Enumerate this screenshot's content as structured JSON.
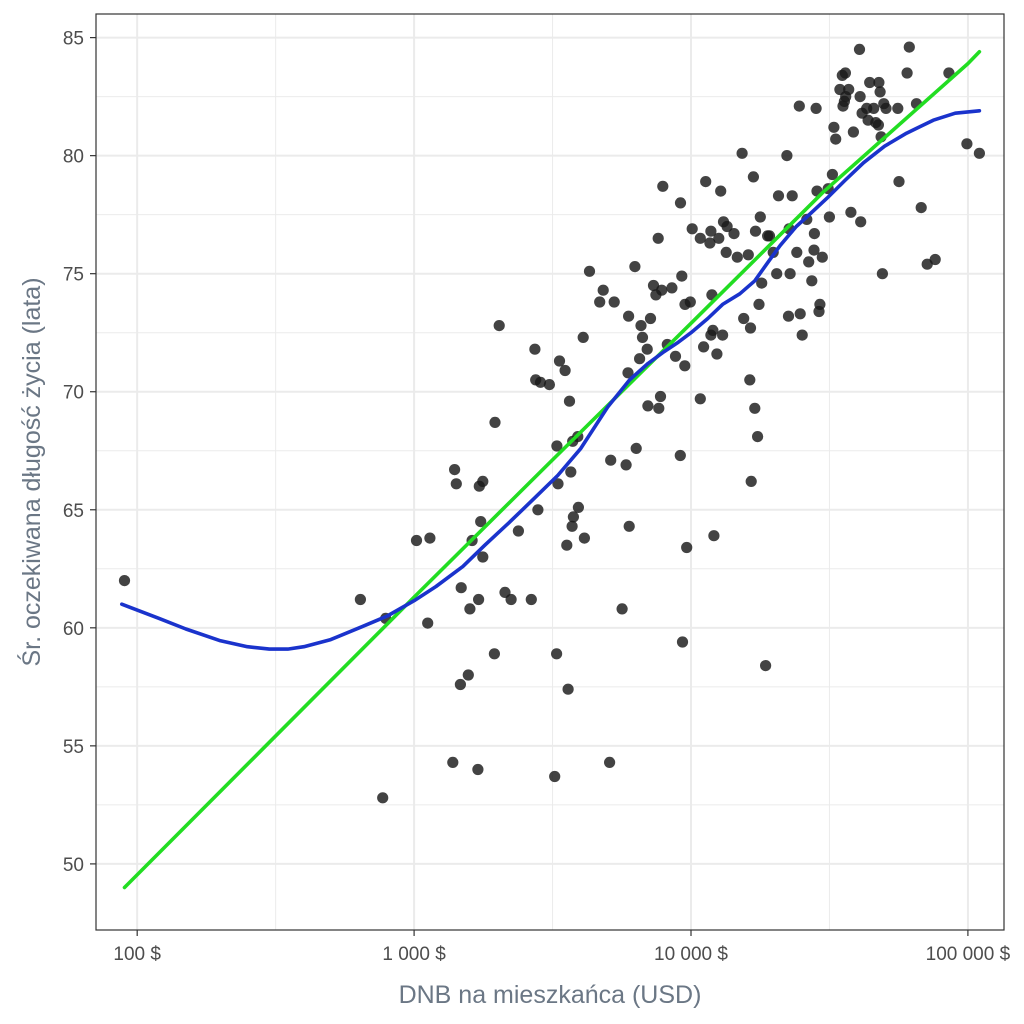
{
  "chart_data": {
    "type": "scatter",
    "xlabel": "DNB na mieszkańca (USD)",
    "ylabel": "Śr. oczekiwana długość życia (lata)",
    "x_scale": "log10",
    "xlim": [
      71,
      135000
    ],
    "ylim": [
      47.2,
      86.0
    ],
    "x_ticks": [
      {
        "value": 100,
        "label": "100 $"
      },
      {
        "value": 1000,
        "label": "1 000 $"
      },
      {
        "value": 10000,
        "label": "10 000 $"
      },
      {
        "value": 100000,
        "label": "100 000 $"
      }
    ],
    "y_ticks": [
      {
        "value": 50,
        "label": "50"
      },
      {
        "value": 55,
        "label": "55"
      },
      {
        "value": 60,
        "label": "60"
      },
      {
        "value": 65,
        "label": "65"
      },
      {
        "value": 70,
        "label": "70"
      },
      {
        "value": 75,
        "label": "75"
      },
      {
        "value": 80,
        "label": "80"
      },
      {
        "value": 85,
        "label": "85"
      }
    ],
    "grid": true,
    "legend": "none",
    "colors": {
      "points": "#1a1a1a",
      "linear_fit": "#22dd22",
      "smooth_fit": "#1a33cc",
      "grid": "#ebebeb",
      "panel_border": "#333333"
    },
    "points": [
      [
        90,
        62.0
      ],
      [
        640,
        61.2
      ],
      [
        770,
        52.8
      ],
      [
        790,
        60.4
      ],
      [
        1020,
        63.7
      ],
      [
        1120,
        60.2
      ],
      [
        1140,
        63.8
      ],
      [
        1380,
        54.3
      ],
      [
        1400,
        66.7
      ],
      [
        1420,
        66.1
      ],
      [
        1470,
        57.6
      ],
      [
        1480,
        61.7
      ],
      [
        1570,
        58.0
      ],
      [
        1590,
        60.8
      ],
      [
        1620,
        63.7
      ],
      [
        1700,
        54.0
      ],
      [
        1710,
        61.2
      ],
      [
        1720,
        66.0
      ],
      [
        1740,
        64.5
      ],
      [
        1770,
        66.2
      ],
      [
        1770,
        63.0
      ],
      [
        1950,
        58.9
      ],
      [
        1960,
        68.7
      ],
      [
        2030,
        72.8
      ],
      [
        2130,
        61.5
      ],
      [
        2240,
        61.2
      ],
      [
        2380,
        64.1
      ],
      [
        2650,
        61.2
      ],
      [
        2730,
        71.8
      ],
      [
        2750,
        70.5
      ],
      [
        2800,
        65.0
      ],
      [
        2860,
        70.4
      ],
      [
        3080,
        70.3
      ],
      [
        3220,
        53.7
      ],
      [
        3270,
        58.9
      ],
      [
        3280,
        67.7
      ],
      [
        3310,
        66.1
      ],
      [
        3350,
        71.3
      ],
      [
        3510,
        70.9
      ],
      [
        3560,
        63.5
      ],
      [
        3600,
        57.4
      ],
      [
        3640,
        69.6
      ],
      [
        3680,
        66.6
      ],
      [
        3720,
        64.3
      ],
      [
        3740,
        67.9
      ],
      [
        3760,
        64.7
      ],
      [
        3900,
        68.1
      ],
      [
        3920,
        65.1
      ],
      [
        4080,
        72.3
      ],
      [
        4120,
        63.8
      ],
      [
        4300,
        75.1
      ],
      [
        4680,
        73.8
      ],
      [
        4820,
        74.3
      ],
      [
        5080,
        54.3
      ],
      [
        5130,
        67.1
      ],
      [
        5280,
        73.8
      ],
      [
        5640,
        60.8
      ],
      [
        5830,
        66.9
      ],
      [
        5920,
        70.8
      ],
      [
        5950,
        73.2
      ],
      [
        5980,
        64.3
      ],
      [
        6270,
        75.3
      ],
      [
        6340,
        67.6
      ],
      [
        6520,
        71.4
      ],
      [
        6600,
        72.8
      ],
      [
        6680,
        72.3
      ],
      [
        6950,
        71.8
      ],
      [
        6990,
        69.4
      ],
      [
        7140,
        73.1
      ],
      [
        7320,
        74.5
      ],
      [
        7470,
        74.1
      ],
      [
        7610,
        76.5
      ],
      [
        7650,
        69.3
      ],
      [
        7760,
        69.8
      ],
      [
        7840,
        74.3
      ],
      [
        7910,
        78.7
      ],
      [
        8210,
        72.0
      ],
      [
        8530,
        74.4
      ],
      [
        8790,
        71.5
      ],
      [
        9150,
        67.3
      ],
      [
        9160,
        78.0
      ],
      [
        9260,
        74.9
      ],
      [
        9320,
        59.4
      ],
      [
        9500,
        71.1
      ],
      [
        9510,
        73.7
      ],
      [
        9650,
        63.4
      ],
      [
        9940,
        73.8
      ],
      [
        10100,
        76.9
      ],
      [
        10800,
        69.7
      ],
      [
        10800,
        76.5
      ],
      [
        11100,
        71.9
      ],
      [
        11300,
        78.9
      ],
      [
        11700,
        76.3
      ],
      [
        11800,
        72.4
      ],
      [
        11800,
        76.8
      ],
      [
        11900,
        74.1
      ],
      [
        12000,
        72.6
      ],
      [
        12100,
        63.9
      ],
      [
        12400,
        71.6
      ],
      [
        12600,
        76.5
      ],
      [
        12800,
        78.5
      ],
      [
        13000,
        72.4
      ],
      [
        13100,
        77.2
      ],
      [
        13400,
        75.9
      ],
      [
        13500,
        77.0
      ],
      [
        14300,
        76.7
      ],
      [
        14700,
        75.7
      ],
      [
        15300,
        80.1
      ],
      [
        15500,
        73.1
      ],
      [
        16100,
        75.8
      ],
      [
        16300,
        70.5
      ],
      [
        16400,
        72.7
      ],
      [
        16500,
        66.2
      ],
      [
        16800,
        79.1
      ],
      [
        17000,
        69.3
      ],
      [
        17100,
        76.8
      ],
      [
        17400,
        68.1
      ],
      [
        17600,
        73.7
      ],
      [
        17800,
        77.4
      ],
      [
        18000,
        74.6
      ],
      [
        18600,
        58.4
      ],
      [
        18900,
        76.6
      ],
      [
        19200,
        76.6
      ],
      [
        19800,
        75.9
      ],
      [
        20400,
        75.0
      ],
      [
        20700,
        78.3
      ],
      [
        22200,
        80.0
      ],
      [
        22500,
        73.2
      ],
      [
        22600,
        76.9
      ],
      [
        22800,
        75.0
      ],
      [
        23200,
        78.3
      ],
      [
        24100,
        75.9
      ],
      [
        24600,
        82.1
      ],
      [
        24800,
        73.3
      ],
      [
        25200,
        72.4
      ],
      [
        26200,
        77.3
      ],
      [
        26600,
        75.5
      ],
      [
        27300,
        74.7
      ],
      [
        27800,
        76.0
      ],
      [
        27900,
        76.7
      ],
      [
        28300,
        82.0
      ],
      [
        28500,
        78.5
      ],
      [
        29000,
        73.4
      ],
      [
        29200,
        73.7
      ],
      [
        29800,
        75.7
      ],
      [
        31300,
        78.6
      ],
      [
        31600,
        77.4
      ],
      [
        32400,
        79.2
      ],
      [
        32800,
        81.2
      ],
      [
        33300,
        80.7
      ],
      [
        34500,
        82.8
      ],
      [
        35200,
        83.4
      ],
      [
        35400,
        82.1
      ],
      [
        35800,
        82.3
      ],
      [
        36100,
        83.5
      ],
      [
        36200,
        82.5
      ],
      [
        37100,
        82.8
      ],
      [
        37800,
        77.6
      ],
      [
        38600,
        81.0
      ],
      [
        40600,
        84.5
      ],
      [
        40800,
        82.5
      ],
      [
        41000,
        77.2
      ],
      [
        41500,
        81.8
      ],
      [
        43100,
        82.0
      ],
      [
        43600,
        81.5
      ],
      [
        44200,
        83.1
      ],
      [
        45700,
        82.0
      ],
      [
        46500,
        81.4
      ],
      [
        47500,
        81.3
      ],
      [
        47700,
        83.1
      ],
      [
        48200,
        82.7
      ],
      [
        48600,
        80.8
      ],
      [
        49100,
        75.0
      ],
      [
        49700,
        82.2
      ],
      [
        50600,
        82.0
      ],
      [
        55800,
        82.0
      ],
      [
        56400,
        78.9
      ],
      [
        60300,
        83.5
      ],
      [
        61400,
        84.6
      ],
      [
        65200,
        82.2
      ],
      [
        67800,
        77.8
      ],
      [
        71300,
        75.4
      ],
      [
        76200,
        75.6
      ],
      [
        85400,
        83.5
      ],
      [
        99200,
        80.5
      ],
      [
        110000,
        80.1
      ]
    ],
    "series": [
      {
        "kind": "linear_fit",
        "x": [
          90,
          300,
          1000,
          3000,
          10000,
          30000,
          100000,
          110000
        ],
        "y": [
          49.0,
          55.15,
          61.3,
          66.85,
          72.9,
          78.45,
          83.9,
          84.4
        ]
      },
      {
        "kind": "smooth_fit",
        "x": [
          88,
          120,
          150,
          200,
          250,
          300,
          350,
          400,
          500,
          650,
          800,
          1000,
          1200,
          1500,
          1800,
          2200,
          2700,
          3300,
          4000,
          5000,
          6000,
          7000,
          8000,
          9000,
          10000,
          11500,
          13000,
          15000,
          17000,
          19000,
          21000,
          24000,
          27000,
          31000,
          36000,
          42000,
          50000,
          60000,
          75000,
          90000,
          110000
        ],
        "y": [
          61.0,
          60.4,
          59.95,
          59.45,
          59.2,
          59.1,
          59.1,
          59.2,
          59.5,
          60.05,
          60.5,
          61.15,
          61.75,
          62.6,
          63.5,
          64.45,
          65.45,
          66.45,
          67.6,
          69.35,
          70.5,
          71.2,
          71.7,
          72.1,
          72.5,
          73.1,
          73.7,
          74.15,
          74.7,
          75.5,
          76.2,
          77.0,
          77.55,
          78.2,
          78.95,
          79.7,
          80.4,
          80.95,
          81.5,
          81.8,
          81.9
        ]
      }
    ]
  }
}
